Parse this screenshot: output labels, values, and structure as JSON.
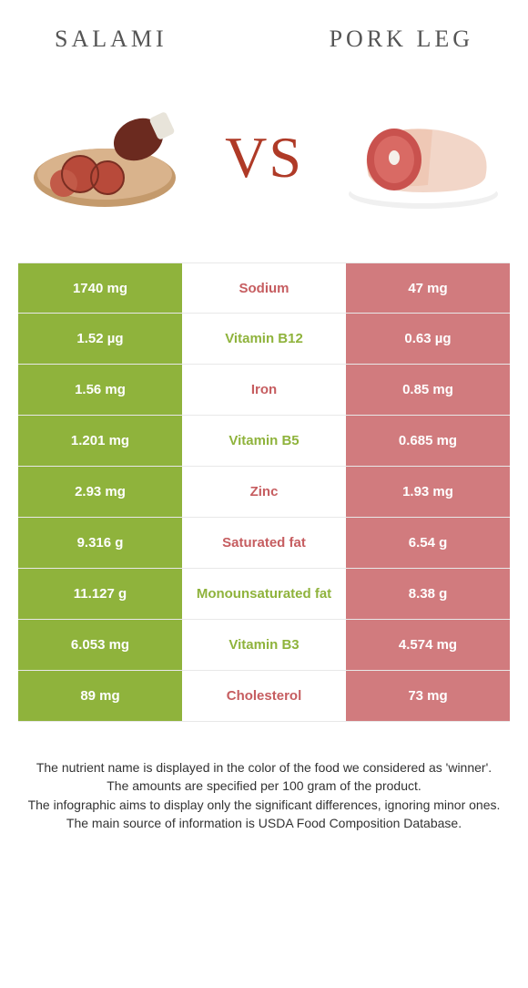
{
  "colors": {
    "left": "#8fb33c",
    "right": "#d17b7e",
    "left_text": "#8fb33c",
    "right_text": "#c65d60",
    "vs": "#af3a27",
    "title": "#555555"
  },
  "left_food": {
    "title": "Salami"
  },
  "right_food": {
    "title": "Pork leg"
  },
  "vs_label": "VS",
  "rows": [
    {
      "left": "1740 mg",
      "label": "Sodium",
      "right": "47 mg",
      "winner": "right"
    },
    {
      "left": "1.52 µg",
      "label": "Vitamin B12",
      "right": "0.63 µg",
      "winner": "left"
    },
    {
      "left": "1.56 mg",
      "label": "Iron",
      "right": "0.85 mg",
      "winner": "right"
    },
    {
      "left": "1.201 mg",
      "label": "Vitamin B5",
      "right": "0.685 mg",
      "winner": "left"
    },
    {
      "left": "2.93 mg",
      "label": "Zinc",
      "right": "1.93 mg",
      "winner": "right"
    },
    {
      "left": "9.316 g",
      "label": "Saturated fat",
      "right": "6.54 g",
      "winner": "right"
    },
    {
      "left": "11.127 g",
      "label": "Monounsaturated fat",
      "right": "8.38 g",
      "winner": "left"
    },
    {
      "left": "6.053 mg",
      "label": "Vitamin B3",
      "right": "4.574 mg",
      "winner": "left"
    },
    {
      "left": "89 mg",
      "label": "Cholesterol",
      "right": "73 mg",
      "winner": "right"
    }
  ],
  "footer": {
    "line1": "The nutrient name is displayed in the color of the food we considered as 'winner'.",
    "line2": "The amounts are specified per 100 gram of the product.",
    "line3": "The infographic aims to display only the significant differences, ignoring minor ones.",
    "line4": "The main source of information is USDA Food Composition Database."
  }
}
